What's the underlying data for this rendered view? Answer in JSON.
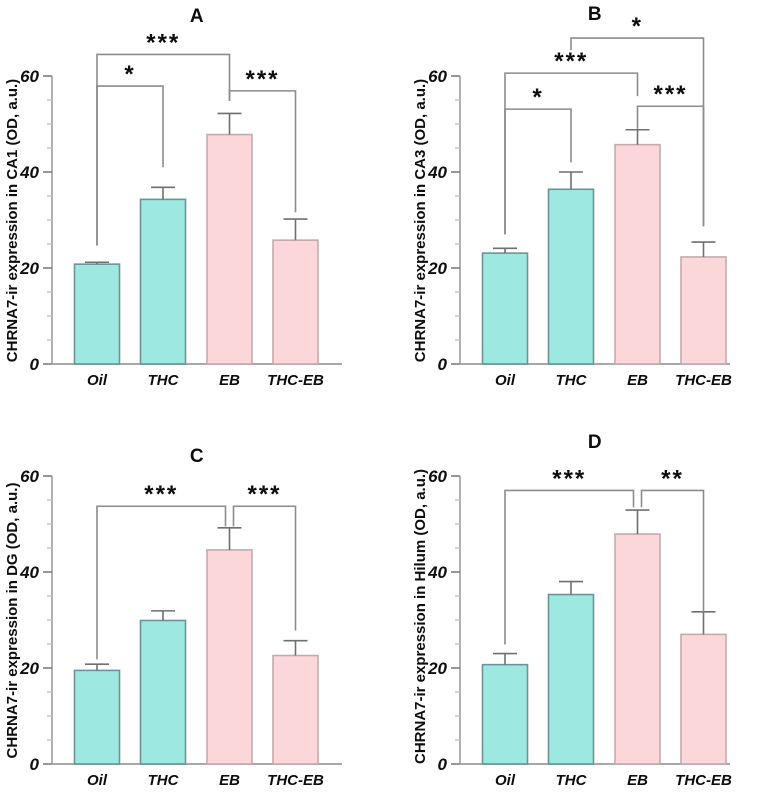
{
  "figure": {
    "description": "Four-panel bar figure of CHRNA7-ir expression by treatment group",
    "panels_order": [
      "A",
      "B",
      "C",
      "D"
    ]
  },
  "colors": {
    "teal_fill": "#9DE8E0",
    "teal_border": "#6D9399",
    "pink_fill": "#FBD7D9",
    "pink_border": "#C2ABAD",
    "error_bar": "#6F6F6F",
    "bracket": "#8C8C8C",
    "axis": "#A8A8A8",
    "tick_major": "#8C8C8C",
    "tick_minor": "#C4C4C4",
    "text": "#0D0D0D",
    "background": "#FFFFFF"
  },
  "chart_data": [
    {
      "type": "bar",
      "panel": "A",
      "ylabel": "CHRNA7-ir expression in CA1 (OD, a.u.)",
      "xlabel": "",
      "categories": [
        "Oil",
        "THC",
        "EB",
        "THC-EB"
      ],
      "values": [
        20.8,
        34.3,
        47.8,
        25.8
      ],
      "errors": [
        0.4,
        2.5,
        4.4,
        4.4
      ],
      "bar_groups": [
        "teal",
        "teal",
        "pink",
        "pink"
      ],
      "ylim": [
        0,
        60
      ],
      "yticks": [
        0,
        20,
        40,
        60
      ],
      "minor_tick_step": 5,
      "grid": false,
      "significance": [
        {
          "from": 0,
          "to": 2,
          "label": "***",
          "y": 64.5,
          "drop_from": 24.7,
          "drop_to": 54.8
        },
        {
          "from": 0,
          "to": 1,
          "label": "*",
          "y": 57.9,
          "drop_from": 24.7,
          "drop_to": 41.0
        },
        {
          "from": 2,
          "to": 3,
          "label": "***",
          "y": 56.9,
          "drop_from": 54.8,
          "drop_to": 31.6
        }
      ]
    },
    {
      "type": "bar",
      "panel": "B",
      "ylabel": "CHRNA7-ir expression in CA3 (OD, a.u.)",
      "xlabel": "",
      "categories": [
        "Oil",
        "THC",
        "EB",
        "THC-EB"
      ],
      "values": [
        23.1,
        36.4,
        45.7,
        22.3
      ],
      "errors": [
        1.0,
        3.6,
        3.1,
        3.1
      ],
      "bar_groups": [
        "teal",
        "teal",
        "pink",
        "pink"
      ],
      "ylim": [
        0,
        60
      ],
      "yticks": [
        0,
        20,
        40,
        60
      ],
      "minor_tick_step": 5,
      "grid": false,
      "significance": [
        {
          "from": 1,
          "to": 3,
          "label": "*",
          "y": 67.9,
          "drop_from": 65.4,
          "drop_to": 28.7
        },
        {
          "from": 0,
          "to": 2,
          "label": "***",
          "y": 60.6,
          "drop_from": 27.0,
          "drop_to": 55.8
        },
        {
          "from": 0,
          "to": 1,
          "label": "*",
          "y": 53.1,
          "drop_from": 27.0,
          "drop_to": 42.0
        },
        {
          "from": 2,
          "to": 3,
          "label": "***",
          "y": 53.7,
          "drop_from": 49.0,
          "drop_to": 28.7
        }
      ]
    },
    {
      "type": "bar",
      "panel": "C",
      "ylabel": "CHRNA7-ir expression in DG (OD, a.u.)",
      "xlabel": "",
      "categories": [
        "Oil",
        "THC",
        "EB",
        "THC-EB"
      ],
      "values": [
        19.5,
        29.9,
        44.6,
        22.6
      ],
      "errors": [
        1.3,
        2.0,
        4.6,
        3.1
      ],
      "bar_groups": [
        "teal",
        "teal",
        "pink",
        "pink"
      ],
      "ylim": [
        0,
        60
      ],
      "yticks": [
        0,
        20,
        40,
        60
      ],
      "minor_tick_step": 5,
      "grid": false,
      "significance": [
        {
          "from": 0,
          "to": 2,
          "label": "***",
          "y": 53.7,
          "drop_from": 21.8,
          "drop_to": 49.5,
          "x_offset_to": -4
        },
        {
          "from": 2,
          "to": 3,
          "label": "***",
          "y": 53.7,
          "drop_from": 49.5,
          "drop_to": 27.8,
          "x_offset_from": 4
        }
      ]
    },
    {
      "type": "bar",
      "panel": "D",
      "ylabel": "CHRNA7-ir expression in Hilum (OD, a.u.)",
      "xlabel": "",
      "categories": [
        "Oil",
        "THC",
        "EB",
        "THC-EB"
      ],
      "values": [
        20.7,
        35.3,
        47.9,
        27.0
      ],
      "errors": [
        2.3,
        2.7,
        5.0,
        4.7
      ],
      "bar_groups": [
        "teal",
        "teal",
        "pink",
        "pink"
      ],
      "ylim": [
        0,
        60
      ],
      "yticks": [
        0,
        20,
        40,
        60
      ],
      "minor_tick_step": 5,
      "grid": false,
      "significance": [
        {
          "from": 0,
          "to": 2,
          "label": "***",
          "y": 57.0,
          "drop_from": 24.9,
          "drop_to": 53.5,
          "x_offset_to": -4
        },
        {
          "from": 2,
          "to": 3,
          "label": "**",
          "y": 57.0,
          "drop_from": 53.5,
          "drop_to": 31.7,
          "x_offset_from": 4
        }
      ]
    }
  ]
}
